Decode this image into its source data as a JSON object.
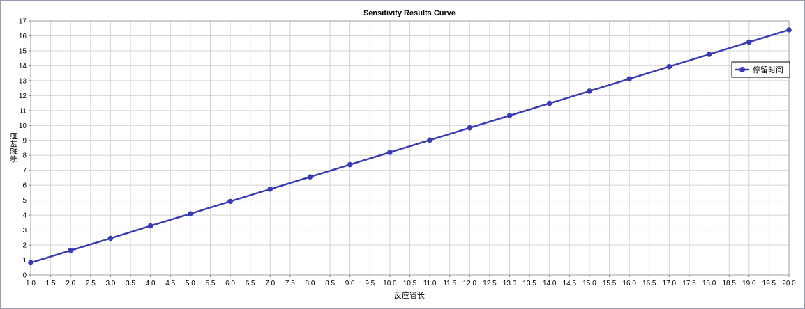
{
  "chart_data": {
    "type": "line",
    "title": "Sensitivity Results Curve",
    "xlabel": "反应管长",
    "ylabel": "停留时间",
    "xlim": [
      1.0,
      20.0
    ],
    "ylim": [
      0,
      17
    ],
    "x_ticks": [
      "1.0",
      "1.5",
      "2.0",
      "2.5",
      "3.0",
      "3.5",
      "4.0",
      "4.5",
      "5.0",
      "5.5",
      "6.0",
      "6.5",
      "7.0",
      "7.5",
      "8.0",
      "8.5",
      "9.0",
      "9.5",
      "10.0",
      "10.5",
      "11.0",
      "11.5",
      "12.0",
      "12.5",
      "13.0",
      "13.5",
      "14.0",
      "14.5",
      "15.0",
      "15.5",
      "16.0",
      "16.5",
      "17.0",
      "17.5",
      "18.0",
      "18.5",
      "19.0",
      "19.5",
      "20.0"
    ],
    "y_ticks": [
      "0",
      "1",
      "2",
      "3",
      "4",
      "5",
      "6",
      "7",
      "8",
      "9",
      "10",
      "11",
      "12",
      "13",
      "14",
      "15",
      "16",
      "17"
    ],
    "grid": true,
    "legend_position": "right",
    "series": [
      {
        "name": "停留时间",
        "color": "#3b3bb3",
        "x": [
          1,
          2,
          3,
          4,
          5,
          6,
          7,
          8,
          9,
          10,
          11,
          12,
          13,
          14,
          15,
          16,
          17,
          18,
          19,
          20
        ],
        "y": [
          0.82,
          1.64,
          2.45,
          3.28,
          4.09,
          4.92,
          5.74,
          6.56,
          7.38,
          8.2,
          9.02,
          9.84,
          10.66,
          11.48,
          12.3,
          13.12,
          13.94,
          14.76,
          15.58,
          16.4
        ]
      }
    ]
  }
}
